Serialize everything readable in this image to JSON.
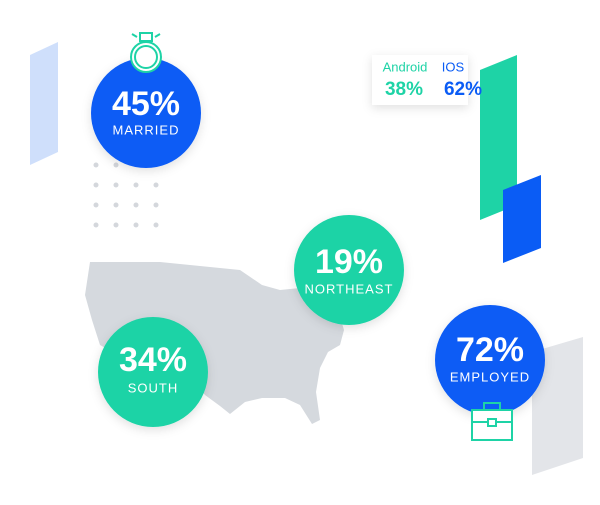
{
  "stats": [
    {
      "value": "45%",
      "label": "MARRIED"
    },
    {
      "value": "19%",
      "label": "NORTHEAST"
    },
    {
      "value": "34%",
      "label": "SOUTH"
    },
    {
      "value": "72%",
      "label": "EMPLOYED"
    }
  ],
  "platforms": [
    {
      "name": "Android",
      "value": "38%"
    },
    {
      "name": "IOS",
      "value": "62%"
    }
  ]
}
